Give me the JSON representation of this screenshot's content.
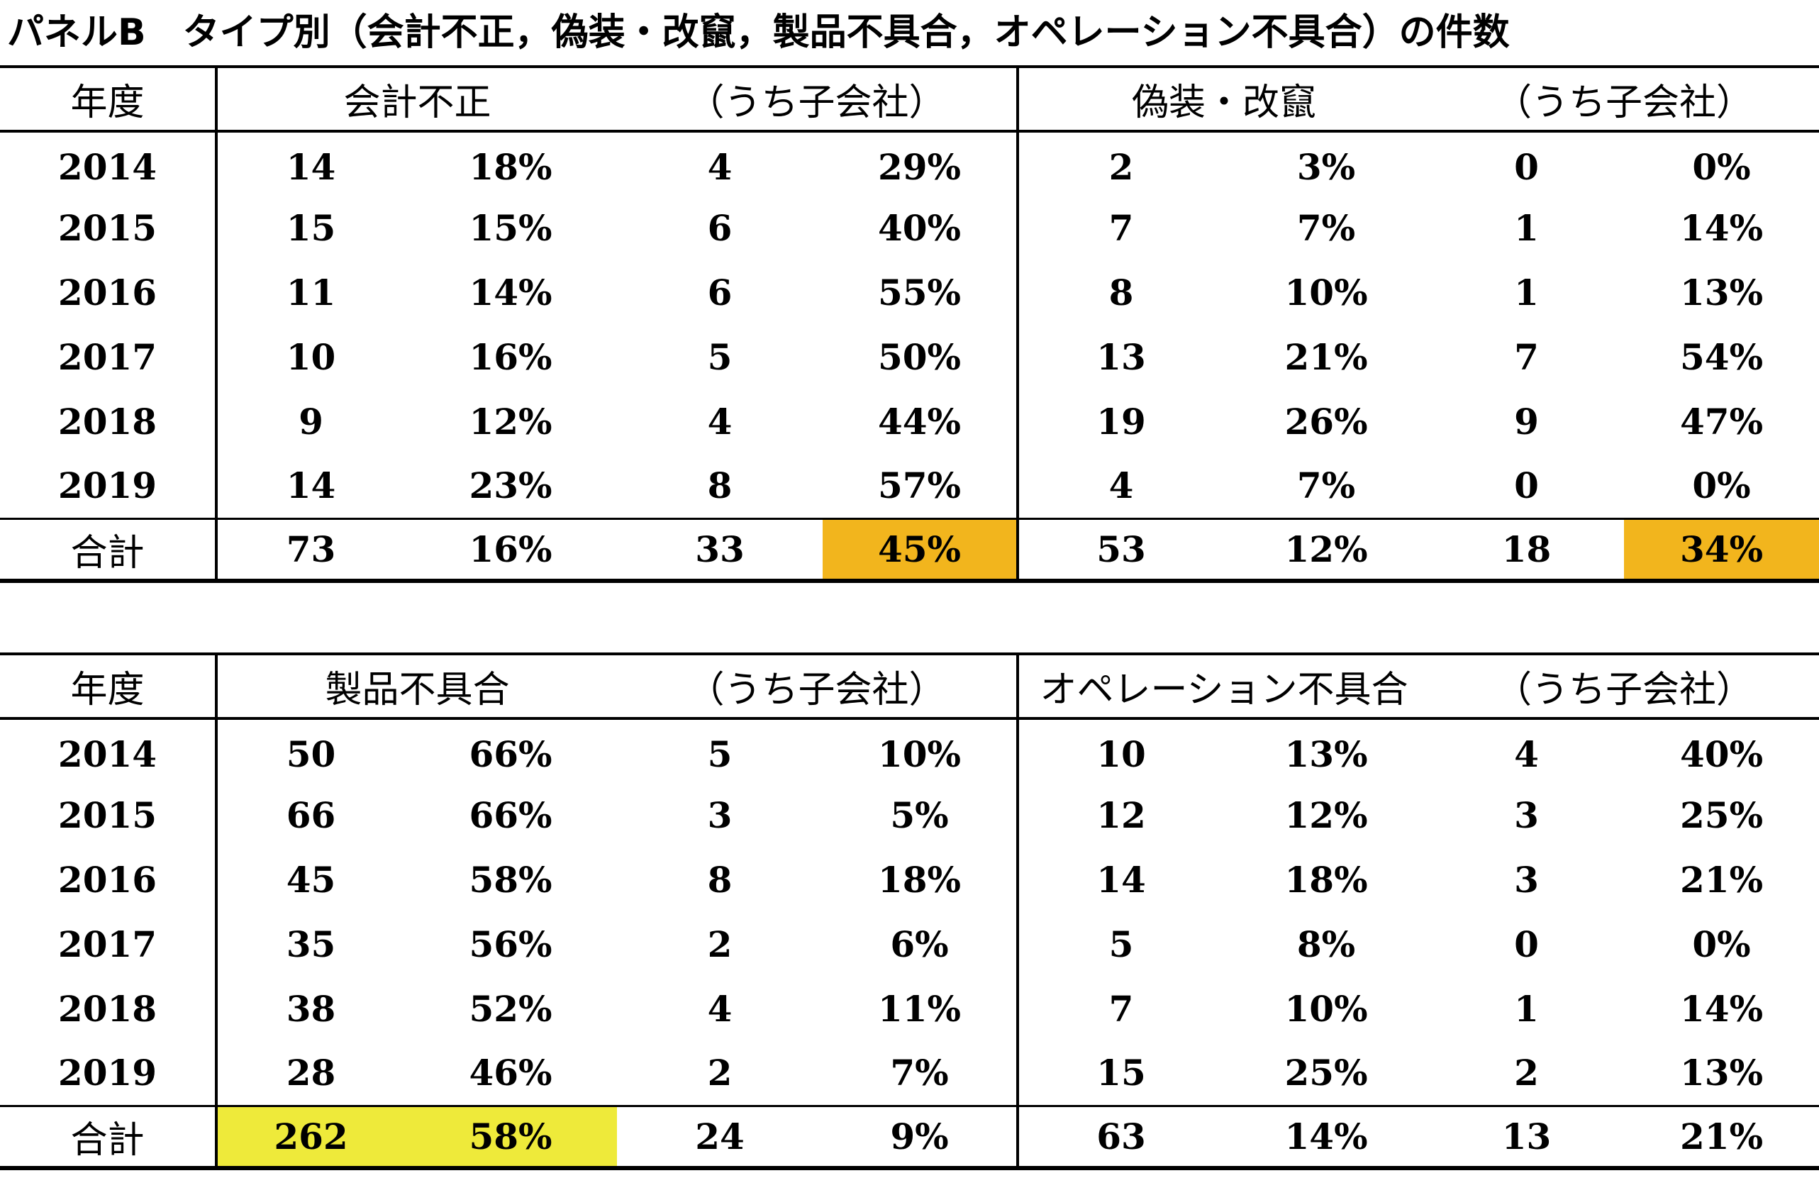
{
  "title": "パネルB　タイプ別（会計不正，偽装・改竄，製品不具合，オペレーション不具合）の件数",
  "colors": {
    "highlight_orange": "#f2b51d",
    "highlight_yellow": "#eeea3a"
  },
  "top": {
    "header": {
      "year": "年度",
      "type_a": "会計不正",
      "sub_a": "（うち子会社）",
      "type_b": "偽装・改竄",
      "sub_b": "（うち子会社）"
    },
    "rows": [
      [
        "2014",
        "14",
        "18%",
        "4",
        "29%",
        "2",
        "3%",
        "0",
        "0%"
      ],
      [
        "2015",
        "15",
        "15%",
        "6",
        "40%",
        "7",
        "7%",
        "1",
        "14%"
      ],
      [
        "2016",
        "11",
        "14%",
        "6",
        "55%",
        "8",
        "10%",
        "1",
        "13%"
      ],
      [
        "2017",
        "10",
        "16%",
        "5",
        "50%",
        "13",
        "21%",
        "7",
        "54%"
      ],
      [
        "2018",
        "9",
        "12%",
        "4",
        "44%",
        "19",
        "26%",
        "9",
        "47%"
      ],
      [
        "2019",
        "14",
        "23%",
        "8",
        "57%",
        "4",
        "7%",
        "0",
        "0%"
      ]
    ],
    "total": [
      "合計",
      "73",
      "16%",
      "33",
      "45%",
      "53",
      "12%",
      "18",
      "34%"
    ]
  },
  "bottom": {
    "header": {
      "year": "年度",
      "type_a": "製品不具合",
      "sub_a": "（うち子会社）",
      "type_b": "オペレーション不具合",
      "sub_b": "（うち子会社）"
    },
    "rows": [
      [
        "2014",
        "50",
        "66%",
        "5",
        "10%",
        "10",
        "13%",
        "4",
        "40%"
      ],
      [
        "2015",
        "66",
        "66%",
        "3",
        "5%",
        "12",
        "12%",
        "3",
        "25%"
      ],
      [
        "2016",
        "45",
        "58%",
        "8",
        "18%",
        "14",
        "18%",
        "3",
        "21%"
      ],
      [
        "2017",
        "35",
        "56%",
        "2",
        "6%",
        "5",
        "8%",
        "0",
        "0%"
      ],
      [
        "2018",
        "38",
        "52%",
        "4",
        "11%",
        "7",
        "10%",
        "1",
        "14%"
      ],
      [
        "2019",
        "28",
        "46%",
        "2",
        "7%",
        "15",
        "25%",
        "2",
        "13%"
      ]
    ],
    "total": [
      "合計",
      "262",
      "58%",
      "24",
      "9%",
      "63",
      "14%",
      "13",
      "21%"
    ]
  }
}
